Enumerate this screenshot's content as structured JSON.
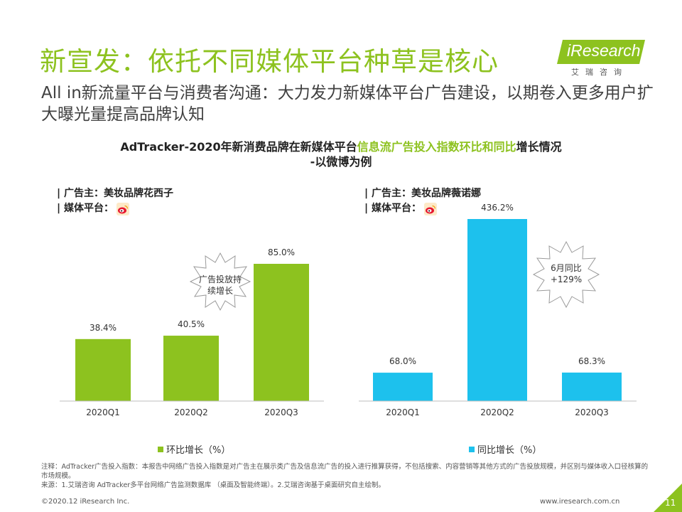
{
  "header": {
    "title": "新宣发：依托不同媒体平台种草是核心",
    "subtitle": "All  in新流量平台与消费者沟通：大力发力新媒体平台广告建设，以期卷入更多用户扩大曝光量提高品牌认知"
  },
  "logo": {
    "text": "iResearch",
    "sub": "艾瑞咨询"
  },
  "chart_title": {
    "part1": "AdTracker-2020年新消费品牌在新媒体平台",
    "part2": "信息流广告投入指数环比和同比",
    "part3": "增长情况",
    "line2": "-以微博为例"
  },
  "left_info": {
    "advertiser": "| 广告主：美妆品牌花西子",
    "platform": "| 媒体平台："
  },
  "right_info": {
    "advertiser": "| 广告主：美妆品牌薇诺娜",
    "platform": "| 媒体平台："
  },
  "colors": {
    "green": "#8dc21f",
    "blue": "#1dc1ed",
    "brand": "#8dc21f"
  },
  "chart_data": [
    {
      "type": "bar",
      "categories": [
        "2020Q1",
        "2020Q2",
        "2020Q3"
      ],
      "values": [
        38.4,
        40.5,
        85.0
      ],
      "labels": [
        "38.4%",
        "40.5%",
        "85.0%"
      ],
      "series_name": "环比增长（%）",
      "ylim": [
        0,
        100
      ],
      "annotation": [
        "广告投放持",
        "续增长"
      ]
    },
    {
      "type": "bar",
      "categories": [
        "2020Q1",
        "2020Q2",
        "2020Q3"
      ],
      "values": [
        68.0,
        436.2,
        68.3
      ],
      "labels": [
        "68.0%",
        "436.2%",
        "68.3%"
      ],
      "series_name": "同比增长（%）",
      "ylim": [
        0,
        500
      ],
      "annotation": [
        "6月同比",
        "+129%"
      ]
    }
  ],
  "notes": {
    "line1": "注释：AdTracker广告投入指数：本报告中网络广告投入指数是对广告主在展示类广告及信息流广告的投入进行推算获得，不包括搜索、内容营销等其他方式的广告投放规模，并区别与媒体收入口径核算的市场规模。",
    "line2": "来源：1.艾瑞咨询 AdTracker多平台网络广告监测数据库 （桌面及智能终端）。2.艾瑞咨询基于桌面研究自主绘制。"
  },
  "footer": {
    "copyright": "©2020.12 iResearch Inc.",
    "url": "www.iresearch.com.cn",
    "page": "11"
  }
}
